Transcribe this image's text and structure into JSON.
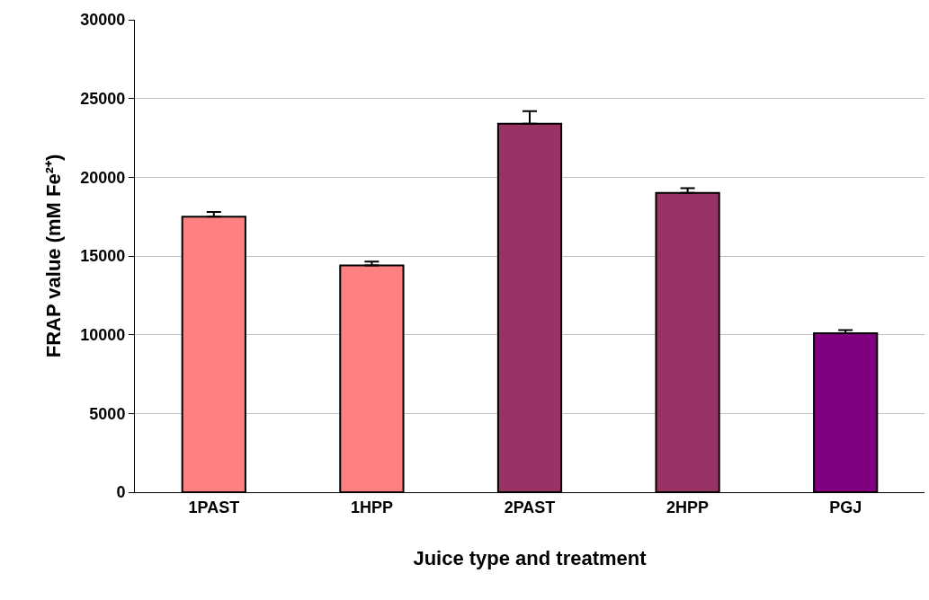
{
  "chart_data": {
    "type": "bar",
    "xlabel": "Juice type and treatment",
    "ylabel": "FRAP value (mM Fe²⁺)",
    "categories": [
      "1PAST",
      "1HPP",
      "2PAST",
      "2HPP",
      "PGJ"
    ],
    "values": [
      17500,
      14400,
      23400,
      19000,
      10100
    ],
    "errors": [
      [
        17500,
        17800
      ],
      [
        14400,
        14650
      ],
      [
        23400,
        24200
      ],
      [
        19000,
        19300
      ],
      [
        10100,
        10300
      ]
    ],
    "colors": [
      "#ff8080",
      "#ff8080",
      "#993366",
      "#993366",
      "#800080"
    ],
    "ylim": [
      0,
      30000
    ],
    "yticks": [
      0,
      5000,
      10000,
      15000,
      20000,
      25000,
      30000
    ],
    "grid": "y"
  }
}
